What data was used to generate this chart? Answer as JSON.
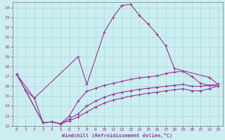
{
  "background_color": "#cceef0",
  "grid_color": "#aadddd",
  "line_color": "#993399",
  "xlabel": "Windchill (Refroidissement éolien,°C)",
  "xlim": [
    -0.5,
    23.5
  ],
  "ylim": [
    12,
    24.5
  ],
  "xticks": [
    0,
    1,
    2,
    3,
    4,
    5,
    6,
    7,
    8,
    9,
    10,
    11,
    12,
    13,
    14,
    15,
    16,
    17,
    18,
    19,
    20,
    21,
    22,
    23
  ],
  "yticks": [
    12,
    13,
    14,
    15,
    16,
    17,
    18,
    19,
    20,
    21,
    22,
    23,
    24
  ],
  "series": [
    {
      "x": [
        0,
        1,
        2,
        7,
        8,
        10,
        11,
        12,
        13,
        14,
        15,
        16,
        17,
        18,
        22,
        23
      ],
      "y": [
        17.2,
        15.6,
        14.8,
        19.0,
        16.2,
        21.5,
        23.0,
        24.2,
        24.3,
        23.2,
        22.3,
        21.3,
        20.1,
        17.8,
        16.9,
        16.2
      ]
    },
    {
      "x": [
        0,
        2,
        3,
        4,
        5,
        6,
        7,
        8,
        9,
        10,
        11,
        12,
        13,
        14,
        15,
        16,
        17,
        18,
        19,
        20,
        21,
        22,
        23
      ],
      "y": [
        17.2,
        14.8,
        12.3,
        12.4,
        12.2,
        13.0,
        14.5,
        15.5,
        15.8,
        16.1,
        16.3,
        16.5,
        16.7,
        16.85,
        16.95,
        17.05,
        17.3,
        17.45,
        17.5,
        17.0,
        16.3,
        16.1,
        16.0
      ]
    },
    {
      "x": [
        0,
        3,
        4,
        5,
        6,
        7,
        8,
        9,
        10,
        11,
        12,
        13,
        14,
        15,
        16,
        17,
        18,
        19,
        20,
        21,
        22,
        23
      ],
      "y": [
        17.2,
        12.3,
        12.4,
        12.2,
        12.7,
        13.2,
        14.0,
        14.5,
        14.9,
        15.2,
        15.4,
        15.55,
        15.7,
        15.8,
        15.9,
        16.0,
        16.1,
        16.2,
        16.0,
        16.0,
        16.1,
        16.2
      ]
    },
    {
      "x": [
        0,
        3,
        4,
        5,
        6,
        7,
        8,
        9,
        10,
        11,
        12,
        13,
        14,
        15,
        16,
        17,
        18,
        19,
        20,
        21,
        22,
        23
      ],
      "y": [
        17.2,
        12.3,
        12.4,
        12.2,
        12.5,
        12.9,
        13.4,
        13.9,
        14.3,
        14.6,
        14.8,
        15.0,
        15.15,
        15.3,
        15.4,
        15.55,
        15.65,
        15.75,
        15.55,
        15.55,
        15.75,
        16.05
      ]
    }
  ]
}
